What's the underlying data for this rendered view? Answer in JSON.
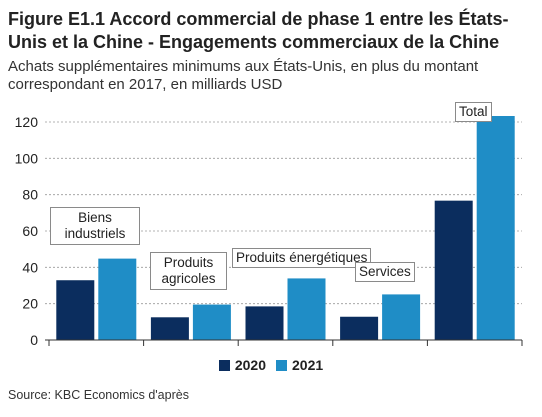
{
  "chart_data": {
    "type": "bar",
    "title": "Figure E1.1 Accord commercial de phase 1 entre les États-Unis et la Chine - Engagements commerciaux de la Chine",
    "subtitle": "Achats supplémentaires minimums aux États-Unis, en plus du montant correspondant en 2017, en milliards USD",
    "categories": [
      "Biens industriels",
      "Produits agricoles",
      "Produits énergétiques",
      "Services",
      "Total"
    ],
    "series": [
      {
        "name": "2020",
        "values": [
          32.9,
          12.5,
          18.5,
          12.8,
          76.7
        ],
        "color": "#0b2d5e"
      },
      {
        "name": "2021",
        "values": [
          44.8,
          19.5,
          33.9,
          25.1,
          123.3
        ],
        "color": "#1f8dc6"
      }
    ],
    "ylim": [
      0,
      130
    ],
    "yticks": [
      0,
      20,
      40,
      60,
      80,
      100,
      120
    ],
    "grid": true,
    "legend_position": "bottom",
    "source": "Source: KBC Economics d'après"
  }
}
